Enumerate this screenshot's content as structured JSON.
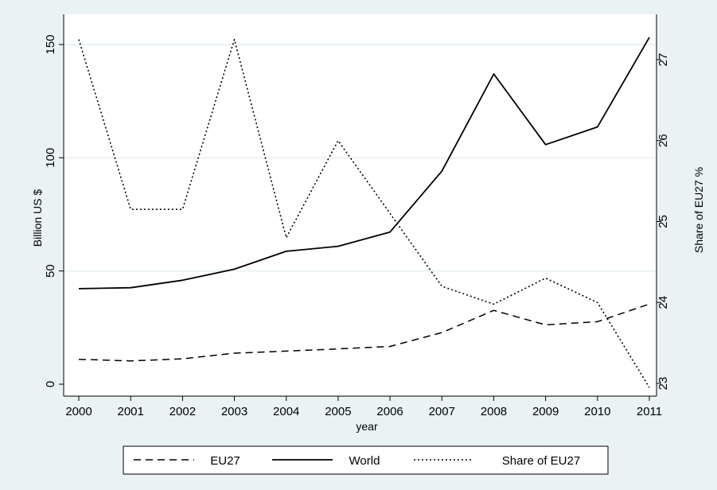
{
  "chart_data": {
    "type": "line",
    "x": [
      2000,
      2001,
      2002,
      2003,
      2004,
      2005,
      2006,
      2007,
      2008,
      2009,
      2010,
      2011
    ],
    "xlabel": "year",
    "ylabel": "Billion US $",
    "ylabel_right": "Share of EU27 %",
    "ylim": [
      0,
      155
    ],
    "ylim_right": [
      22.95,
      27.25
    ],
    "yticks": [
      0,
      50,
      100,
      150
    ],
    "yticks_right": [
      23,
      24,
      25,
      26,
      27
    ],
    "grid": true,
    "legend_placement": "bottom",
    "series": [
      {
        "name": "EU27",
        "axis": "left",
        "style": "dashed",
        "values": [
          11,
          10.3,
          11.2,
          13.7,
          14.6,
          15.6,
          16.7,
          22.8,
          32.6,
          26.2,
          27.6,
          35.4
        ]
      },
      {
        "name": "World",
        "axis": "left",
        "style": "solid",
        "values": [
          42.2,
          42.6,
          45.9,
          50.8,
          58.7,
          60.9,
          67.2,
          94.1,
          137,
          105.8,
          113.6,
          153.2
        ]
      },
      {
        "name": "Share of EU27",
        "axis": "right",
        "style": "dotted",
        "values": [
          27.25,
          25.15,
          25.15,
          27.25,
          24.8,
          26,
          25.1,
          24.2,
          23.98,
          24.3,
          24,
          22.95
        ]
      }
    ]
  },
  "colors": {
    "background": "#eaf2f3",
    "plot": "#ffffff",
    "line": "#000000",
    "grid": "#eaf2f3"
  }
}
